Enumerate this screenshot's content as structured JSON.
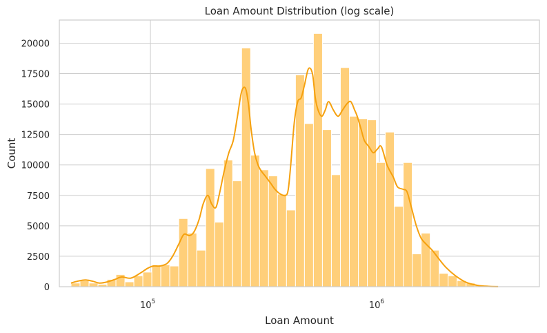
{
  "chart_data": {
    "type": "bar",
    "title": "Loan Amount Distribution (log scale)",
    "xlabel": "Loan Amount",
    "ylabel": "Count",
    "xscale": "log",
    "xlim": [
      40000,
      5000000
    ],
    "ylim": [
      0,
      21900
    ],
    "grid": true,
    "colors": {
      "bar": "#ffcf7a",
      "bar_edge": "#ffffff",
      "kde": "#f5a10f",
      "grid": "#cccccc",
      "spine": "#cccccc"
    },
    "x_ticks": [
      {
        "value": 100000,
        "base": "10",
        "exp": "5"
      },
      {
        "value": 1000000,
        "base": "10",
        "exp": "6"
      }
    ],
    "y_ticks": [
      {
        "value": 0,
        "label": "0"
      },
      {
        "value": 2500,
        "label": "2500"
      },
      {
        "value": 5000,
        "label": "5000"
      },
      {
        "value": 7500,
        "label": "7500"
      },
      {
        "value": 10000,
        "label": "10000"
      },
      {
        "value": 12500,
        "label": "12500"
      },
      {
        "value": 15000,
        "label": "15000"
      },
      {
        "value": 17500,
        "label": "17500"
      },
      {
        "value": 20000,
        "label": "20000"
      }
    ],
    "bins": {
      "start": 45000,
      "end": 4500000,
      "counts": [
        300,
        500,
        300,
        200,
        600,
        1000,
        400,
        900,
        1200,
        1700,
        1800,
        1700,
        5600,
        4400,
        3000,
        9700,
        5300,
        10400,
        8700,
        19600,
        10800,
        9600,
        9100,
        7600,
        6300,
        17400,
        13400,
        20800,
        12900,
        9200,
        18000,
        14000,
        13800,
        13700,
        10200,
        12700,
        6600,
        10200,
        2700,
        4400,
        3000,
        1100,
        900,
        500,
        300,
        150,
        80,
        40,
        20,
        10,
        5
      ]
    },
    "kde": {
      "x": [
        45000,
        48000,
        52000,
        56000,
        60000,
        65000,
        70000,
        75000,
        82000,
        90000,
        97000,
        103000,
        110000,
        118000,
        125000,
        133000,
        140000,
        148000,
        155000,
        163000,
        170000,
        178000,
        185000,
        193000,
        200000,
        210000,
        220000,
        230000,
        240000,
        250000,
        260000,
        268000,
        275000,
        285000,
        295000,
        305000,
        320000,
        335000,
        350000,
        370000,
        390000,
        400000,
        410000,
        425000,
        440000,
        455000,
        470000,
        490000,
        510000,
        525000,
        540000,
        560000,
        580000,
        600000,
        630000,
        660000,
        690000,
        720000,
        750000,
        780000,
        800000,
        830000,
        860000,
        900000,
        940000,
        980000,
        1020000,
        1080000,
        1150000,
        1200000,
        1270000,
        1320000,
        1380000,
        1450000,
        1520000,
        1600000,
        1700000,
        1800000,
        1950000,
        2150000,
        2400000,
        2700000,
        3000000,
        3300000
      ],
      "y": [
        300,
        450,
        550,
        450,
        300,
        400,
        600,
        800,
        700,
        1100,
        1500,
        1700,
        1700,
        1900,
        2500,
        3500,
        4300,
        4200,
        4500,
        5500,
        6800,
        7500,
        6800,
        6500,
        7600,
        9500,
        11000,
        12000,
        14000,
        16000,
        16300,
        15000,
        13000,
        11000,
        10000,
        9500,
        9000,
        8500,
        8000,
        7600,
        7500,
        8000,
        10000,
        13500,
        15200,
        15500,
        16500,
        17900,
        17500,
        15500,
        14500,
        14000,
        14500,
        15200,
        14500,
        14000,
        14500,
        15000,
        15200,
        14500,
        14000,
        13000,
        12000,
        11500,
        11000,
        11300,
        11500,
        10000,
        9000,
        8200,
        8000,
        7800,
        6500,
        5000,
        4000,
        3500,
        3000,
        2400,
        1600,
        900,
        350,
        100,
        30,
        5
      ]
    }
  }
}
